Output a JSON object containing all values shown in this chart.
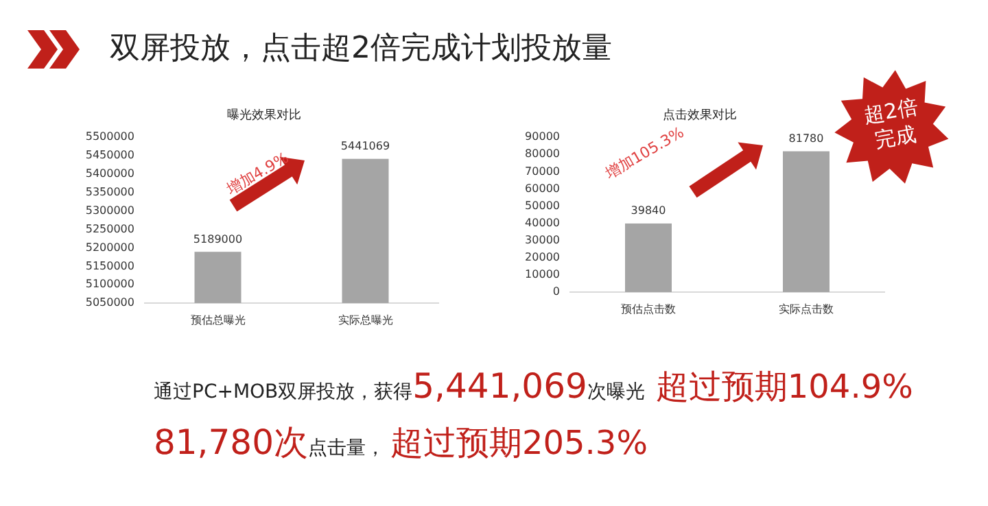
{
  "chart_data": [
    {
      "type": "other",
      "title": "双屏投放，点击超2倍完成计划投放量"
    },
    {
      "type": "bar",
      "title": "曝光效果对比",
      "categories": [
        "预估总曝光",
        "实际总曝光"
      ],
      "values": [
        5189000,
        5441069
      ],
      "color": "#a5a5a5",
      "ylim": [
        5050000,
        5500000
      ],
      "yticks": [
        5050000,
        5100000,
        5150000,
        5200000,
        5250000,
        5300000,
        5350000,
        5400000,
        5450000,
        5500000
      ],
      "data_labels": true,
      "grid": false,
      "annotations": [
        "增加4.9%"
      ]
    },
    {
      "type": "bar",
      "title": "点击效果对比",
      "categories": [
        "预估点击数",
        "实际点击数"
      ],
      "values": [
        39840,
        81780
      ],
      "color": "#a5a5a5",
      "ylim": [
        0,
        90000
      ],
      "yticks": [
        0,
        10000,
        20000,
        30000,
        40000,
        50000,
        60000,
        70000,
        80000,
        90000
      ],
      "data_labels": true,
      "grid": false,
      "annotations": [
        "增加105.3%",
        "超2倍完成"
      ]
    },
    {
      "type": "other",
      "annotations": [
        "通过PC+MOB双屏投放，获得",
        "5,441,069",
        "次曝光",
        "超过预期104.9%",
        "81,780次",
        "点击量，",
        "超过预期205.3%"
      ]
    }
  ]
}
